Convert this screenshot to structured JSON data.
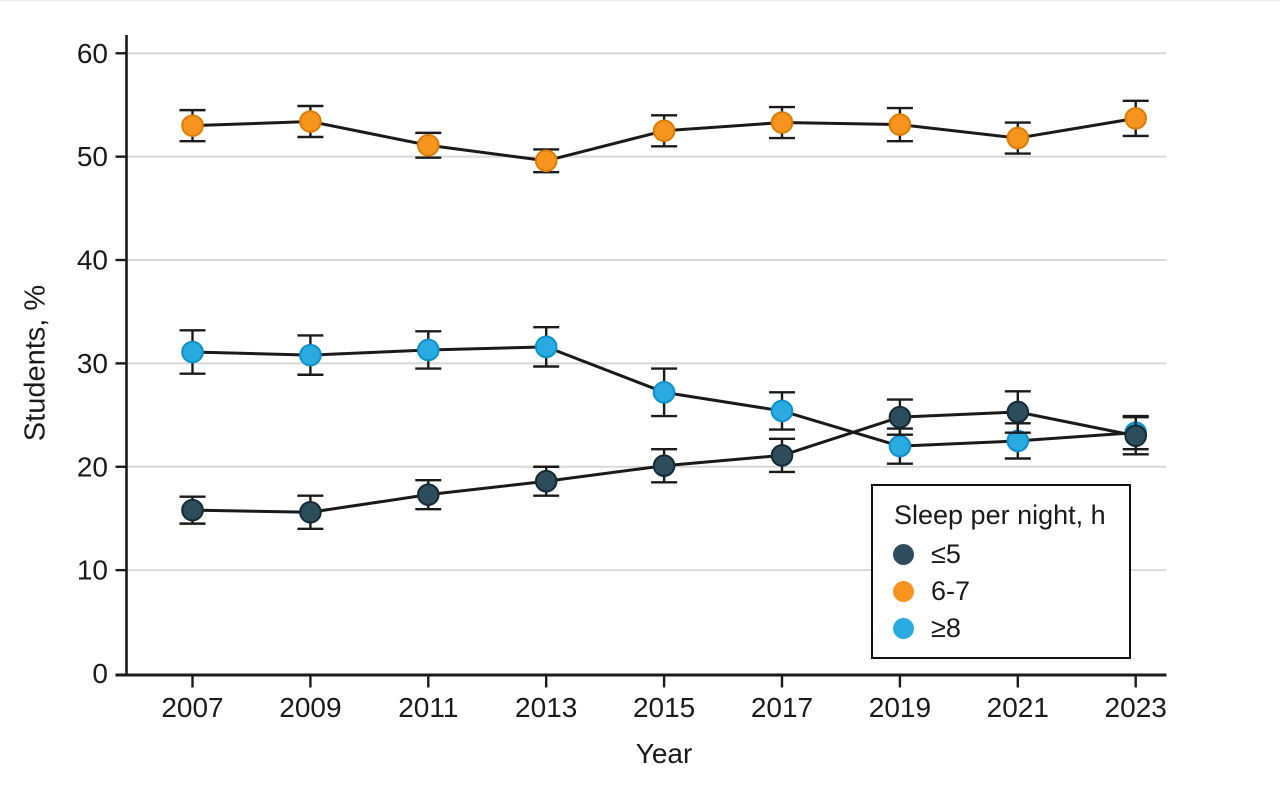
{
  "chart_data": {
    "type": "line",
    "title": "",
    "xlabel": "Year",
    "ylabel": "Students, %",
    "x": [
      2007,
      2009,
      2011,
      2013,
      2015,
      2017,
      2019,
      2021,
      2023
    ],
    "ylim": [
      0,
      60
    ],
    "ytick_interval": 10,
    "grid": true,
    "error_bars": true,
    "legend_title": "Sleep per night, h",
    "legend_position": "inside-bottom-right",
    "series": [
      {
        "name": "≤5",
        "color": "#2D4D5C",
        "edge_color": "#142B36",
        "values": [
          15.8,
          15.6,
          17.3,
          18.6,
          20.1,
          21.1,
          24.8,
          25.3,
          23.0
        ],
        "ci": [
          1.3,
          1.6,
          1.4,
          1.4,
          1.6,
          1.6,
          1.7,
          2.0,
          1.8
        ]
      },
      {
        "name": "6-7",
        "color": "#F7941D",
        "edge_color": "#DB7D05",
        "values": [
          53.0,
          53.4,
          51.1,
          49.6,
          52.5,
          53.3,
          53.1,
          51.8,
          53.7
        ],
        "ci": [
          1.5,
          1.5,
          1.2,
          1.1,
          1.5,
          1.5,
          1.6,
          1.5,
          1.7
        ]
      },
      {
        "name": "≥8",
        "color": "#29ABE2",
        "edge_color": "#0D91CC",
        "values": [
          31.1,
          30.8,
          31.3,
          31.6,
          27.2,
          25.4,
          22.0,
          22.5,
          23.3
        ],
        "ci": [
          2.1,
          1.9,
          1.8,
          1.9,
          2.3,
          1.8,
          1.7,
          1.7,
          1.6
        ]
      }
    ]
  },
  "legend": {
    "title": "Sleep per night, h",
    "items": [
      {
        "label": "≤5",
        "color": "#2D4D5C"
      },
      {
        "label": "6-7",
        "color": "#F7941D"
      },
      {
        "label": "≥8",
        "color": "#29ABE2"
      }
    ]
  },
  "colors": {
    "line": "#1a1a1a",
    "grid": "#d8d8d8",
    "text": "#1a1a1a",
    "background": "#ffffff"
  }
}
